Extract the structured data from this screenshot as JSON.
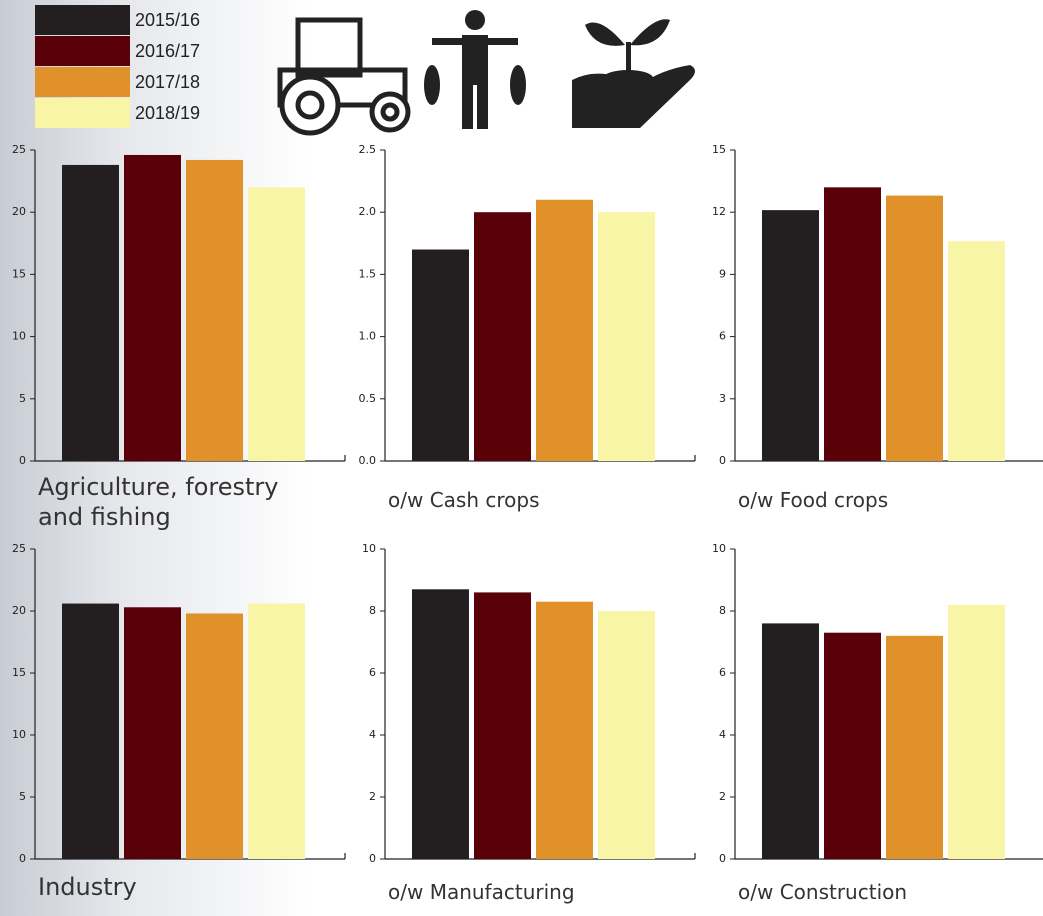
{
  "legend": [
    {
      "name": "2015/16",
      "color": "#231f20"
    },
    {
      "name": "2016/17",
      "color": "#5a0008"
    },
    {
      "name": "2017/18",
      "color": "#e0912a"
    },
    {
      "name": "2018/19",
      "color": "#f8f5a6"
    }
  ],
  "chart_data": [
    {
      "type": "bar",
      "title": "Agriculture, forestry and fishing",
      "values": [
        23.8,
        24.6,
        24.2,
        22.0
      ],
      "ylim": [
        0,
        25
      ],
      "yticks": [
        0,
        5,
        10,
        15,
        20,
        25
      ]
    },
    {
      "type": "bar",
      "title": "o/w Cash crops",
      "values": [
        1.7,
        2.0,
        2.1,
        2.0
      ],
      "ylim": [
        0,
        2.5
      ],
      "yticks": [
        {
          "value": 0,
          "label": "0.0"
        },
        0.5,
        {
          "value": 1,
          "label": "1.0"
        },
        1.5,
        {
          "value": 2,
          "label": "2.0"
        },
        2.5
      ]
    },
    {
      "type": "bar",
      "title": "o/w Food crops",
      "values": [
        12.1,
        13.2,
        12.8,
        10.6
      ],
      "ylim": [
        0,
        15
      ],
      "yticks": [
        0,
        3,
        6,
        9,
        12,
        15
      ]
    },
    {
      "type": "bar",
      "title": "Industry",
      "values": [
        20.6,
        20.3,
        19.8,
        20.6
      ],
      "ylim": [
        0,
        25
      ],
      "yticks": [
        0,
        5,
        10,
        15,
        20,
        25
      ]
    },
    {
      "type": "bar",
      "title": "o/w Manufacturing",
      "values": [
        8.7,
        8.6,
        8.3,
        8.0
      ],
      "ylim": [
        0,
        10
      ],
      "yticks": [
        0,
        2,
        4,
        6,
        8,
        10
      ]
    },
    {
      "type": "bar",
      "title": "o/w Construction",
      "values": [
        7.6,
        7.3,
        7.2,
        8.2
      ],
      "ylim": [
        0,
        10
      ],
      "yticks": [
        0,
        2,
        4,
        6,
        8,
        10
      ]
    }
  ]
}
